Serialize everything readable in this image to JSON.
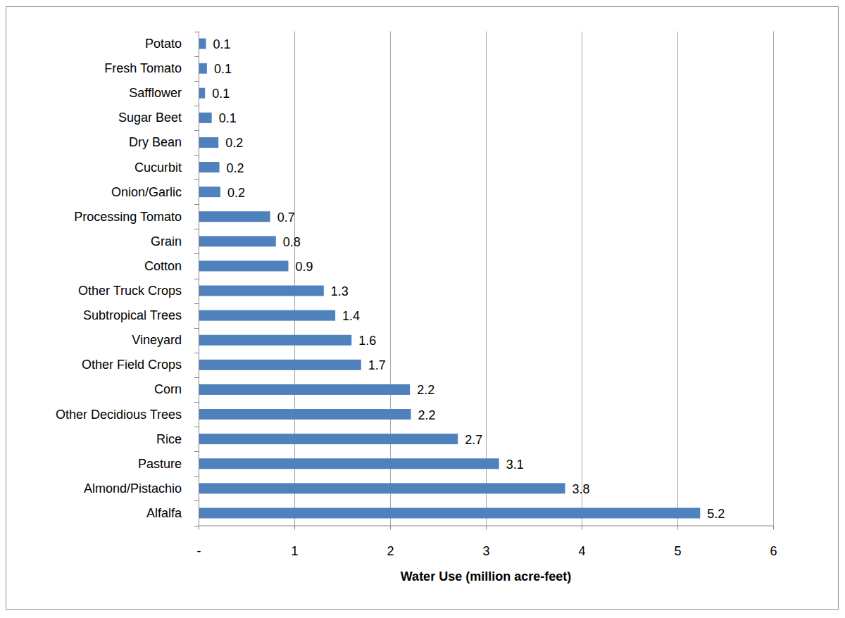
{
  "chart_data": {
    "type": "bar",
    "orientation": "horizontal",
    "categories": [
      "Potato",
      "Fresh Tomato",
      "Safflower",
      "Sugar Beet",
      "Dry Bean",
      "Cucurbit",
      "Onion/Garlic",
      "Processing Tomato",
      "Grain",
      "Cotton",
      "Other Truck Crops",
      "Subtropical Trees",
      "Vineyard",
      "Other Field Crops",
      "Corn",
      "Other Decidious Trees",
      "Rice",
      "Pasture",
      "Almond/Pistachio",
      "Alfalfa"
    ],
    "values": [
      0.07,
      0.08,
      0.06,
      0.13,
      0.2,
      0.21,
      0.22,
      0.74,
      0.8,
      0.93,
      1.3,
      1.42,
      1.59,
      1.69,
      2.2,
      2.21,
      2.7,
      3.13,
      3.82,
      5.23
    ],
    "value_labels": [
      "0.1",
      "0.1",
      "0.1",
      "0.1",
      "0.2",
      "0.2",
      "0.2",
      "0.7",
      "0.8",
      "0.9",
      "1.3",
      "1.4",
      "1.6",
      "1.7",
      "2.2",
      "2.2",
      "2.7",
      "3.1",
      "3.8",
      "5.2"
    ],
    "data_labels": true,
    "color": "#4f81bd",
    "x_label": "Water Use (million acre-feet)",
    "xlim": [
      0,
      6
    ],
    "xticks": [
      {
        "value": 0,
        "label": "-"
      },
      1,
      2,
      3,
      4,
      5,
      6
    ],
    "grid": true
  }
}
